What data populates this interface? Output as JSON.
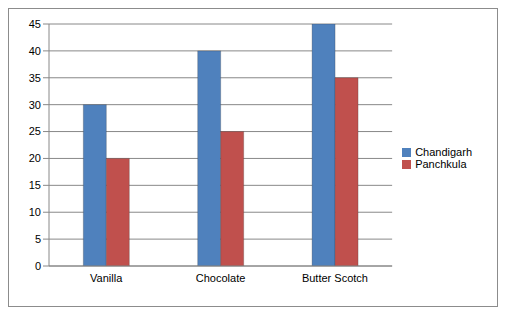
{
  "chart_data": {
    "type": "bar",
    "categories": [
      "Vanilla",
      "Chocolate",
      "Butter Scotch"
    ],
    "series": [
      {
        "name": "Chandigarh",
        "color": "#4f81bd",
        "values": [
          30,
          40,
          45
        ]
      },
      {
        "name": "Panchkula",
        "color": "#c0504d",
        "values": [
          20,
          25,
          35
        ]
      }
    ],
    "ylim": [
      0,
      45
    ],
    "yticks": [
      0,
      5,
      10,
      15,
      20,
      25,
      30,
      35,
      40,
      45
    ],
    "grid": true,
    "legend": "right"
  }
}
